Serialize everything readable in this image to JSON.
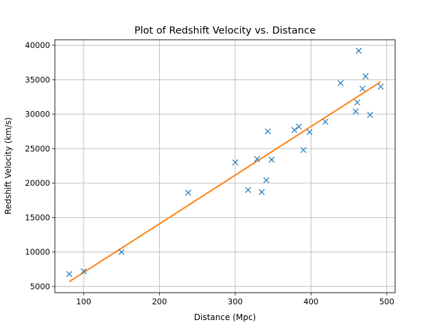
{
  "chart_data": {
    "type": "scatter",
    "title": "Plot of Redshift Velocity vs. Distance",
    "xlabel": "Distance (Mpc)",
    "ylabel": "Redshift Velocity (km/s)",
    "xlim": [
      62,
      511
    ],
    "ylim": [
      4100,
      40800
    ],
    "xticks": [
      100,
      200,
      300,
      400,
      500
    ],
    "yticks": [
      5000,
      10000,
      15000,
      20000,
      25000,
      30000,
      35000,
      40000
    ],
    "grid": true,
    "legend": "none",
    "colors": {
      "points": "#1f77b4",
      "fit": "#ff7f0e"
    },
    "series": [
      {
        "type": "scatter",
        "marker": "x",
        "points": [
          [
            81,
            6800
          ],
          [
            100,
            7200
          ],
          [
            150,
            10000
          ],
          [
            238,
            18600
          ],
          [
            300,
            23000
          ],
          [
            317,
            19000
          ],
          [
            329,
            23500
          ],
          [
            335,
            18700
          ],
          [
            341,
            20400
          ],
          [
            343,
            27500
          ],
          [
            348,
            23400
          ],
          [
            378,
            27700
          ],
          [
            384,
            28200
          ],
          [
            390,
            24800
          ],
          [
            398,
            27400
          ],
          [
            419,
            28900
          ],
          [
            439,
            34500
          ],
          [
            459,
            30400
          ],
          [
            461,
            31700
          ],
          [
            463,
            39200
          ],
          [
            468,
            33700
          ],
          [
            472,
            35500
          ],
          [
            478,
            29900
          ],
          [
            492,
            34000
          ]
        ]
      },
      {
        "type": "line",
        "points": [
          [
            81,
            5700
          ],
          [
            492,
            34700
          ]
        ]
      }
    ]
  }
}
